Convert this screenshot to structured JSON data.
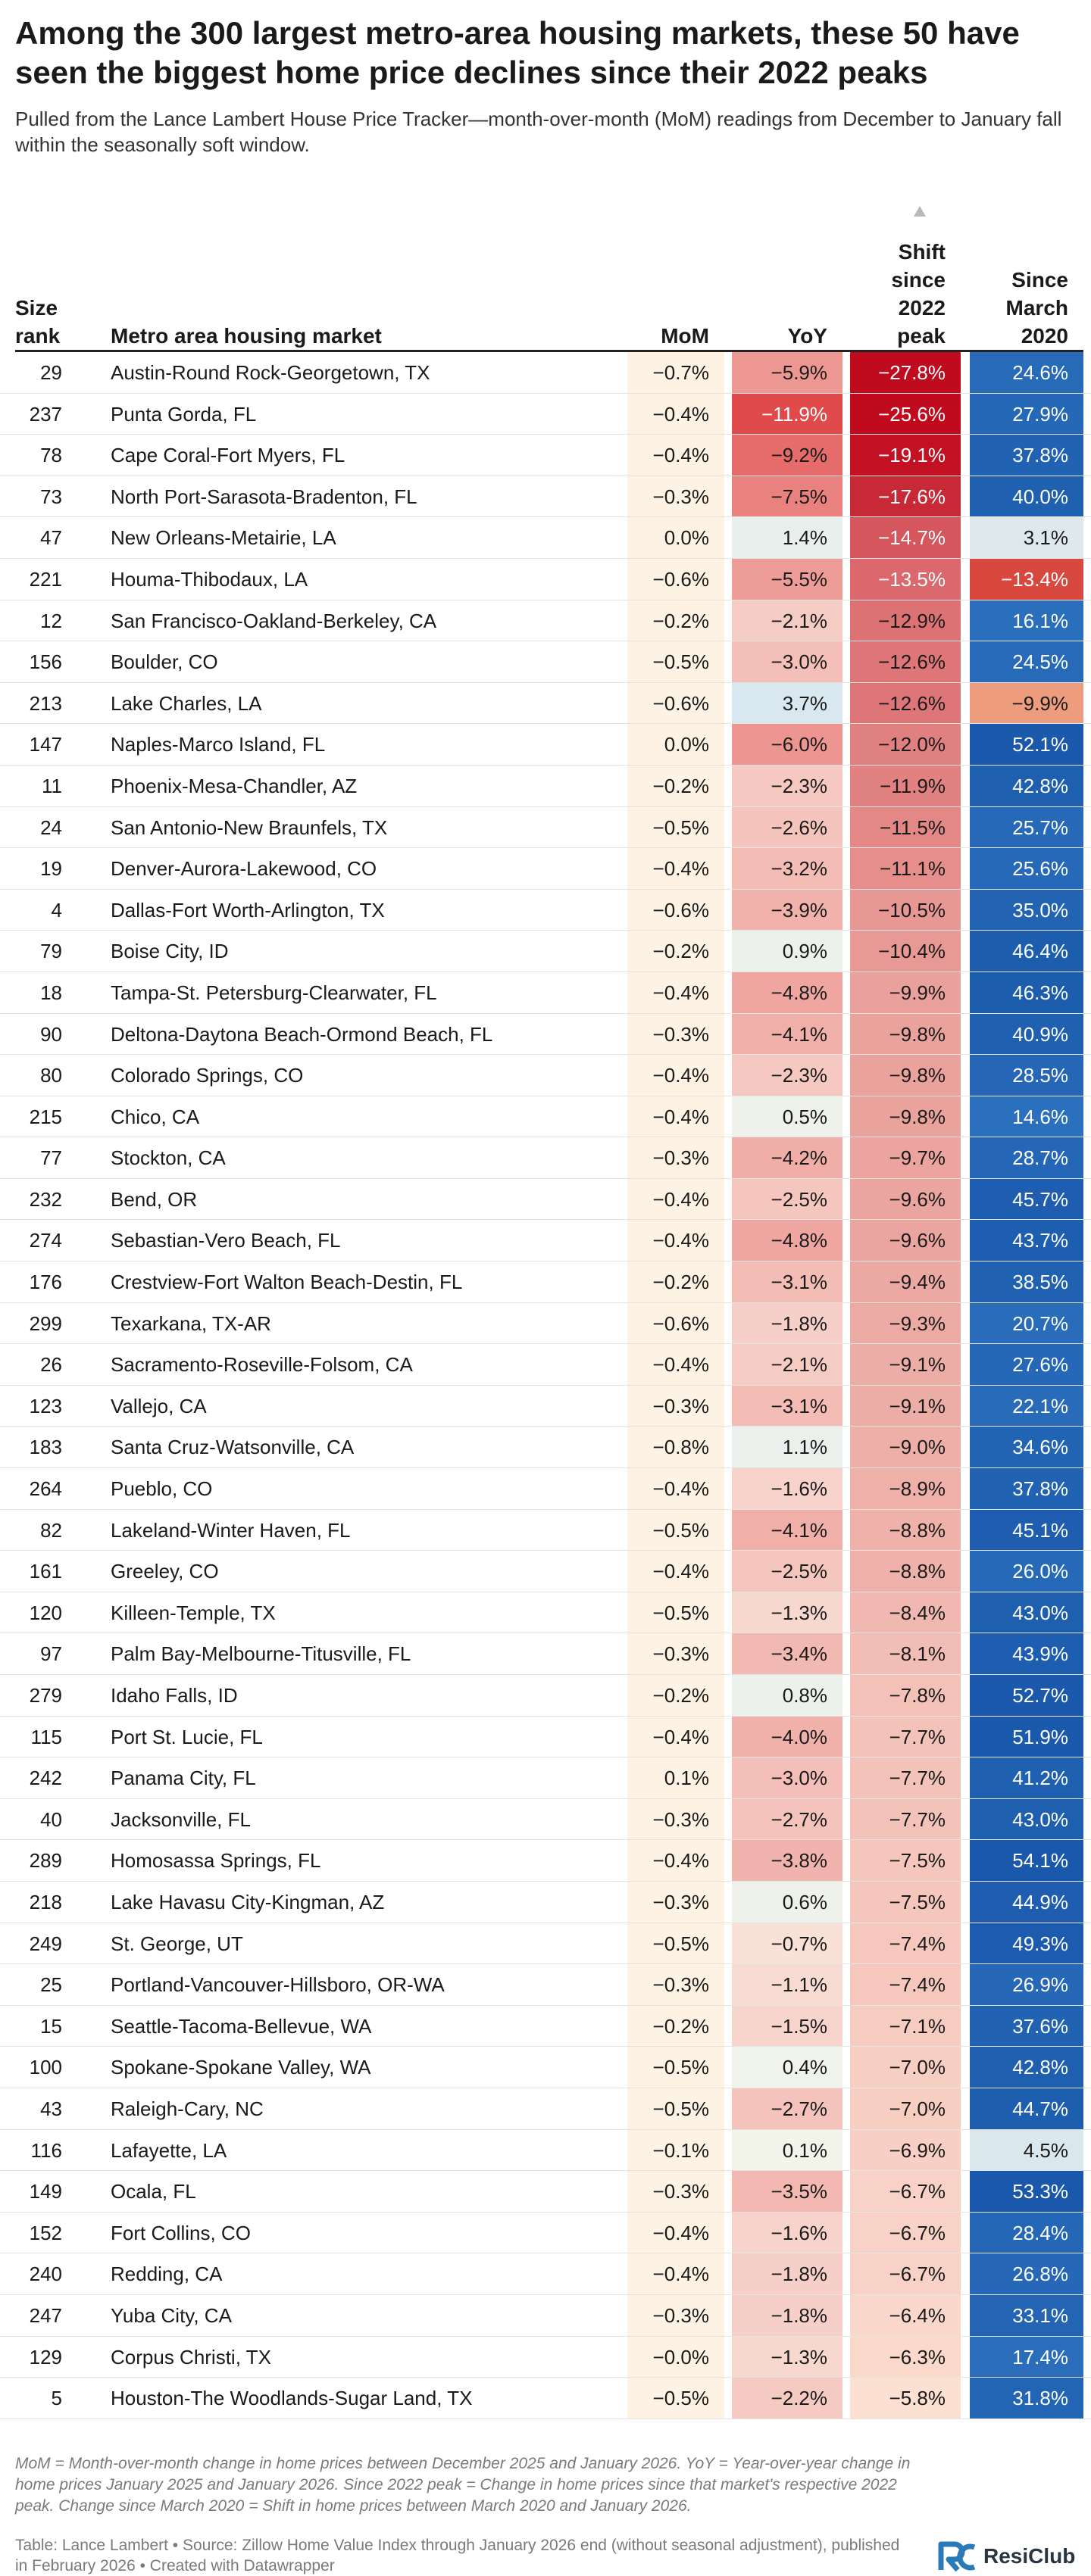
{
  "title": "Among the 300 largest metro-area housing markets, these 50 have seen the biggest home price declines since their 2022 peaks",
  "subtitle": "Pulled from the Lance Lambert House Price Tracker—month-over-month (MoM) readings from December to January fall within the seasonally soft window.",
  "columns": {
    "rank": [
      "Size",
      "rank"
    ],
    "name": [
      "Metro area housing market"
    ],
    "mom": [
      "MoM"
    ],
    "yoy": [
      "YoY"
    ],
    "peak": [
      "Shift",
      "since",
      "2022",
      "peak"
    ],
    "since": [
      "Since",
      "March",
      "2020"
    ]
  },
  "sort_indicator": "ascending",
  "colors": {
    "negative_scale_dark": "#c00b1e",
    "negative_scale_light": "#fbe8dc",
    "neutral": "#f4f4ee",
    "positive_light": "#dde8ee",
    "positive_strong": "#1f62b4",
    "mom_background": "#fdf2e3"
  },
  "chart_data": {
    "type": "table",
    "columns": [
      "Size rank",
      "Metro area housing market",
      "MoM",
      "YoY",
      "Shift since 2022 peak",
      "Since March 2020"
    ],
    "sort": "Shift since 2022 peak (ascending)",
    "rows": [
      {
        "rank": "29",
        "name": "Austin-Round Rock-Georgetown, TX",
        "mom": -0.7,
        "yoy": -5.9,
        "peak": -27.8,
        "since": 24.6
      },
      {
        "rank": "237",
        "name": "Punta Gorda, FL",
        "mom": -0.4,
        "yoy": -11.9,
        "peak": -25.6,
        "since": 27.9
      },
      {
        "rank": "78",
        "name": "Cape Coral-Fort Myers, FL",
        "mom": -0.4,
        "yoy": -9.2,
        "peak": -19.1,
        "since": 37.8
      },
      {
        "rank": "73",
        "name": "North Port-Sarasota-Bradenton, FL",
        "mom": -0.3,
        "yoy": -7.5,
        "peak": -17.6,
        "since": 40.0
      },
      {
        "rank": "47",
        "name": "New Orleans-Metairie, LA",
        "mom": 0.0,
        "yoy": 1.4,
        "peak": -14.7,
        "since": 3.1
      },
      {
        "rank": "221",
        "name": "Houma-Thibodaux, LA",
        "mom": -0.6,
        "yoy": -5.5,
        "peak": -13.5,
        "since": -13.4
      },
      {
        "rank": "12",
        "name": "San Francisco-Oakland-Berkeley, CA",
        "mom": -0.2,
        "yoy": -2.1,
        "peak": -12.9,
        "since": 16.1
      },
      {
        "rank": "156",
        "name": "Boulder, CO",
        "mom": -0.5,
        "yoy": -3.0,
        "peak": -12.6,
        "since": 24.5
      },
      {
        "rank": "213",
        "name": "Lake Charles, LA",
        "mom": -0.6,
        "yoy": 3.7,
        "peak": -12.6,
        "since": -9.9
      },
      {
        "rank": "147",
        "name": "Naples-Marco Island, FL",
        "mom": 0.0,
        "yoy": -6.0,
        "peak": -12.0,
        "since": 52.1
      },
      {
        "rank": "11",
        "name": "Phoenix-Mesa-Chandler, AZ",
        "mom": -0.2,
        "yoy": -2.3,
        "peak": -11.9,
        "since": 42.8
      },
      {
        "rank": "24",
        "name": "San Antonio-New Braunfels, TX",
        "mom": -0.5,
        "yoy": -2.6,
        "peak": -11.5,
        "since": 25.7
      },
      {
        "rank": "19",
        "name": "Denver-Aurora-Lakewood, CO",
        "mom": -0.4,
        "yoy": -3.2,
        "peak": -11.1,
        "since": 25.6
      },
      {
        "rank": "4",
        "name": "Dallas-Fort Worth-Arlington, TX",
        "mom": -0.6,
        "yoy": -3.9,
        "peak": -10.5,
        "since": 35.0
      },
      {
        "rank": "79",
        "name": "Boise City, ID",
        "mom": -0.2,
        "yoy": 0.9,
        "peak": -10.4,
        "since": 46.4
      },
      {
        "rank": "18",
        "name": "Tampa-St. Petersburg-Clearwater, FL",
        "mom": -0.4,
        "yoy": -4.8,
        "peak": -9.9,
        "since": 46.3
      },
      {
        "rank": "90",
        "name": "Deltona-Daytona Beach-Ormond Beach, FL",
        "mom": -0.3,
        "yoy": -4.1,
        "peak": -9.8,
        "since": 40.9
      },
      {
        "rank": "80",
        "name": "Colorado Springs, CO",
        "mom": -0.4,
        "yoy": -2.3,
        "peak": -9.8,
        "since": 28.5
      },
      {
        "rank": "215",
        "name": "Chico, CA",
        "mom": -0.4,
        "yoy": 0.5,
        "peak": -9.8,
        "since": 14.6
      },
      {
        "rank": "77",
        "name": "Stockton, CA",
        "mom": -0.3,
        "yoy": -4.2,
        "peak": -9.7,
        "since": 28.7
      },
      {
        "rank": "232",
        "name": "Bend, OR",
        "mom": -0.4,
        "yoy": -2.5,
        "peak": -9.6,
        "since": 45.7
      },
      {
        "rank": "274",
        "name": "Sebastian-Vero Beach, FL",
        "mom": -0.4,
        "yoy": -4.8,
        "peak": -9.6,
        "since": 43.7
      },
      {
        "rank": "176",
        "name": "Crestview-Fort Walton Beach-Destin, FL",
        "mom": -0.2,
        "yoy": -3.1,
        "peak": -9.4,
        "since": 38.5
      },
      {
        "rank": "299",
        "name": "Texarkana, TX-AR",
        "mom": -0.6,
        "yoy": -1.8,
        "peak": -9.3,
        "since": 20.7
      },
      {
        "rank": "26",
        "name": "Sacramento-Roseville-Folsom, CA",
        "mom": -0.4,
        "yoy": -2.1,
        "peak": -9.1,
        "since": 27.6
      },
      {
        "rank": "123",
        "name": "Vallejo, CA",
        "mom": -0.3,
        "yoy": -3.1,
        "peak": -9.1,
        "since": 22.1
      },
      {
        "rank": "183",
        "name": "Santa Cruz-Watsonville, CA",
        "mom": -0.8,
        "yoy": 1.1,
        "peak": -9.0,
        "since": 34.6
      },
      {
        "rank": "264",
        "name": "Pueblo, CO",
        "mom": -0.4,
        "yoy": -1.6,
        "peak": -8.9,
        "since": 37.8
      },
      {
        "rank": "82",
        "name": "Lakeland-Winter Haven, FL",
        "mom": -0.5,
        "yoy": -4.1,
        "peak": -8.8,
        "since": 45.1
      },
      {
        "rank": "161",
        "name": "Greeley, CO",
        "mom": -0.4,
        "yoy": -2.5,
        "peak": -8.8,
        "since": 26.0
      },
      {
        "rank": "120",
        "name": "Killeen-Temple, TX",
        "mom": -0.5,
        "yoy": -1.3,
        "peak": -8.4,
        "since": 43.0
      },
      {
        "rank": "97",
        "name": "Palm Bay-Melbourne-Titusville, FL",
        "mom": -0.3,
        "yoy": -3.4,
        "peak": -8.1,
        "since": 43.9
      },
      {
        "rank": "279",
        "name": "Idaho Falls, ID",
        "mom": -0.2,
        "yoy": 0.8,
        "peak": -7.8,
        "since": 52.7
      },
      {
        "rank": "115",
        "name": "Port St. Lucie, FL",
        "mom": -0.4,
        "yoy": -4.0,
        "peak": -7.7,
        "since": 51.9
      },
      {
        "rank": "242",
        "name": "Panama City, FL",
        "mom": 0.1,
        "yoy": -3.0,
        "peak": -7.7,
        "since": 41.2
      },
      {
        "rank": "40",
        "name": "Jacksonville, FL",
        "mom": -0.3,
        "yoy": -2.7,
        "peak": -7.7,
        "since": 43.0
      },
      {
        "rank": "289",
        "name": "Homosassa Springs, FL",
        "mom": -0.4,
        "yoy": -3.8,
        "peak": -7.5,
        "since": 54.1
      },
      {
        "rank": "218",
        "name": "Lake Havasu City-Kingman, AZ",
        "mom": -0.3,
        "yoy": 0.6,
        "peak": -7.5,
        "since": 44.9
      },
      {
        "rank": "249",
        "name": "St. George, UT",
        "mom": -0.5,
        "yoy": -0.7,
        "peak": -7.4,
        "since": 49.3
      },
      {
        "rank": "25",
        "name": "Portland-Vancouver-Hillsboro, OR-WA",
        "mom": -0.3,
        "yoy": -1.1,
        "peak": -7.4,
        "since": 26.9
      },
      {
        "rank": "15",
        "name": "Seattle-Tacoma-Bellevue, WA",
        "mom": -0.2,
        "yoy": -1.5,
        "peak": -7.1,
        "since": 37.6
      },
      {
        "rank": "100",
        "name": "Spokane-Spokane Valley, WA",
        "mom": -0.5,
        "yoy": 0.4,
        "peak": -7.0,
        "since": 42.8
      },
      {
        "rank": "43",
        "name": "Raleigh-Cary, NC",
        "mom": -0.5,
        "yoy": -2.7,
        "peak": -7.0,
        "since": 44.7
      },
      {
        "rank": "116",
        "name": "Lafayette, LA",
        "mom": -0.1,
        "yoy": 0.1,
        "peak": -6.9,
        "since": 4.5
      },
      {
        "rank": "149",
        "name": "Ocala, FL",
        "mom": -0.3,
        "yoy": -3.5,
        "peak": -6.7,
        "since": 53.3
      },
      {
        "rank": "152",
        "name": "Fort Collins, CO",
        "mom": -0.4,
        "yoy": -1.6,
        "peak": -6.7,
        "since": 28.4
      },
      {
        "rank": "240",
        "name": "Redding, CA",
        "mom": -0.4,
        "yoy": -1.8,
        "peak": -6.7,
        "since": 26.8
      },
      {
        "rank": "247",
        "name": "Yuba City, CA",
        "mom": -0.3,
        "yoy": -1.8,
        "peak": -6.4,
        "since": 33.1
      },
      {
        "rank": "129",
        "name": "Corpus Christi, TX",
        "mom": -0.0,
        "yoy": -1.3,
        "peak": -6.3,
        "since": 17.4
      },
      {
        "rank": "5",
        "name": "Houston-The Woodlands-Sugar Land, TX",
        "mom": -0.5,
        "yoy": -2.2,
        "peak": -5.8,
        "since": 31.8
      }
    ]
  },
  "footnote": "MoM = Month-over-month change in home prices between December 2025 and January 2026. YoY = Year-over-year change in home prices January 2025 and January 2026. Since 2022 peak = Change in home prices since that market's respective 2022 peak. Change since March 2020 = Shift in home prices between March 2020 and January 2026.",
  "credits": "Table: Lance Lambert • Source: Zillow Home Value Index through January 2026 end (without seasonal adjustment), published in February 2026 • Created with Datawrapper",
  "logo": {
    "icon": "resiclub-logo-icon",
    "text": "ResiClub",
    "color": "#2a7ab8"
  }
}
